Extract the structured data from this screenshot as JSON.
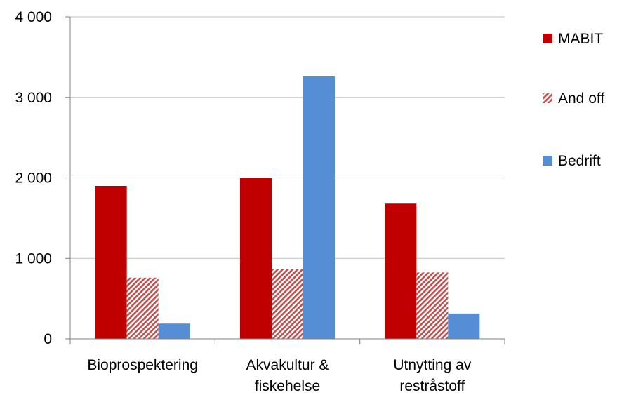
{
  "chart_data": {
    "type": "bar",
    "categories": [
      [
        "Bioprospektering"
      ],
      [
        "Akvakultur &",
        "fiskehelse"
      ],
      [
        "Utnytting av",
        "restråstoff"
      ]
    ],
    "series": [
      {
        "name": "MABIT",
        "values": [
          1900,
          2000,
          1680
        ],
        "color": "#c00000",
        "pattern": "solid"
      },
      {
        "name": "And off",
        "values": [
          760,
          870,
          825
        ],
        "color": "#c0504d",
        "pattern": "hatched"
      },
      {
        "name": "Bedrift",
        "values": [
          190,
          3260,
          315
        ],
        "color": "#558ed5",
        "pattern": "solid"
      }
    ],
    "y_ticks": [
      "0",
      "1 000",
      "2 000",
      "3 000",
      "4 000"
    ],
    "ylim": [
      0,
      4000
    ],
    "grid": true,
    "legend_position": "right"
  }
}
